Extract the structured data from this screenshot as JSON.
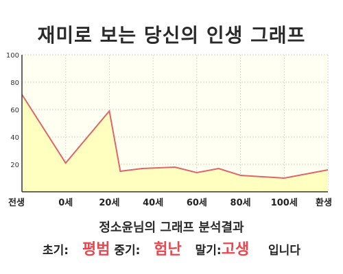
{
  "title": "재미로 보는 당신의 인생 그래프",
  "summary_title": "정소윤님의 그래프 분석결과",
  "phases": {
    "early_label": "초기:",
    "early_value": "평범",
    "middle_label": "중기:",
    "middle_value": "험난",
    "late_label": "말기:",
    "late_value": "고생",
    "ending": "입니다"
  },
  "chart_data": {
    "type": "area",
    "title": "재미로 보는 당신의 인생 그래프",
    "xlabel": "",
    "ylabel": "",
    "categories": [
      "전생",
      "0세",
      "20세",
      "40세",
      "60세",
      "80세",
      "100세",
      "환생"
    ],
    "x_positions": [
      0,
      1,
      2,
      3,
      4,
      5,
      6,
      7
    ],
    "ylim": [
      0,
      100
    ],
    "y_ticks": [
      20,
      40,
      60,
      80,
      100
    ],
    "grid": true,
    "series": [
      {
        "x": [
          0,
          1,
          2,
          2.25,
          2.75,
          3.5,
          4,
          4.5,
          5,
          6,
          7
        ],
        "values": [
          71,
          21,
          59,
          15,
          17,
          18,
          14,
          17,
          12,
          10,
          16
        ]
      }
    ],
    "colors": {
      "line": "#e06468",
      "fill": "#ffffc0",
      "plot_bg": "#fffff2",
      "grid": "#d8d8c8",
      "axis": "#333333"
    }
  }
}
